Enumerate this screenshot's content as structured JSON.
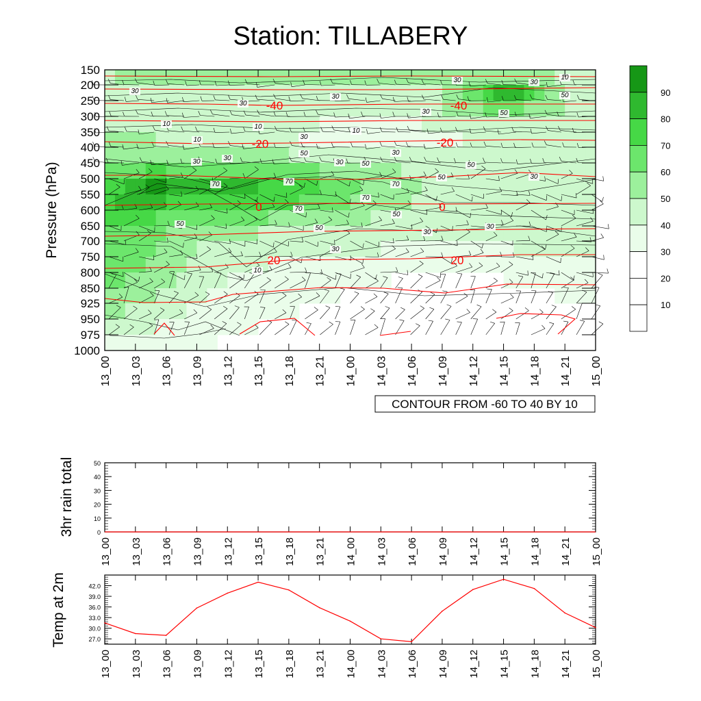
{
  "title": "Station: TILLABERY",
  "colors": {
    "shade_levels": [
      "#ffffff",
      "#ffffff",
      "#ffffff",
      "#eafdea",
      "#cdf8cd",
      "#9cf09c",
      "#6ce66c",
      "#46d846",
      "#2fb92f",
      "#169716"
    ],
    "contour_line": "#000000",
    "temp_line": "#ff0000",
    "box": "#000000"
  },
  "chart_data": [
    {
      "type": "heatmap",
      "name": "time-pressure section",
      "ylabel": "Pressure (hPa)",
      "xlabel": "",
      "x_ticks": [
        "13_00",
        "13_03",
        "13_06",
        "13_09",
        "13_12",
        "13_15",
        "13_18",
        "13_21",
        "14_00",
        "14_03",
        "14_06",
        "14_09",
        "14_12",
        "14_15",
        "14_18",
        "14_21",
        "15_00"
      ],
      "y_ticks": [
        "150",
        "200",
        "250",
        "300",
        "350",
        "400",
        "450",
        "500",
        "550",
        "600",
        "650",
        "700",
        "750",
        "800",
        "850",
        "925",
        "950",
        "975",
        "1000"
      ],
      "colorbar_levels": [
        "10",
        "20",
        "30",
        "40",
        "50",
        "60",
        "70",
        "80",
        "90"
      ],
      "contour_note": "CONTOUR FROM -60 TO 40 BY 10",
      "humidity_labels": [
        "30",
        "30",
        "30",
        "30",
        "30",
        "10",
        "30",
        "50",
        "50",
        "10",
        "10",
        "10",
        "10",
        "30",
        "30",
        "30",
        "50",
        "50",
        "30",
        "30",
        "70",
        "70",
        "70",
        "70",
        "50",
        "50",
        "50",
        "50",
        "70",
        "30",
        "30",
        "50",
        "30",
        "30",
        "10"
      ],
      "temperature_labels": [
        "-40",
        "-40",
        "-20",
        "-20",
        "0",
        "0",
        "20",
        "20"
      ],
      "temperature_isotherms": [
        {
          "label": "-40",
          "level": -40
        },
        {
          "label": "-20",
          "level": -20
        },
        {
          "label": "0",
          "level": 0
        },
        {
          "label": "20",
          "level": 20
        }
      ]
    },
    {
      "type": "line",
      "name": "3hr rain total",
      "ylabel": "3hr rain total",
      "x_ticks": [
        "13_00",
        "13_03",
        "13_06",
        "13_09",
        "13_12",
        "13_15",
        "13_18",
        "13_21",
        "14_00",
        "14_03",
        "14_06",
        "14_09",
        "14_12",
        "14_15",
        "14_18",
        "14_21",
        "15_00"
      ],
      "y_ticks": [
        "0",
        "10",
        "20",
        "30",
        "40",
        "50"
      ],
      "ylim": [
        0,
        50
      ],
      "values": [
        0,
        0,
        0,
        0,
        0,
        0,
        0,
        0,
        0,
        0,
        0,
        0,
        0,
        0,
        0,
        0,
        0
      ]
    },
    {
      "type": "line",
      "name": "Temp at 2m",
      "ylabel": "Temp at 2m",
      "x_ticks": [
        "13_00",
        "13_03",
        "13_06",
        "13_09",
        "13_12",
        "13_15",
        "13_18",
        "13_21",
        "14_00",
        "14_03",
        "14_06",
        "14_09",
        "14_12",
        "14_15",
        "14_18",
        "14_21",
        "15_00"
      ],
      "y_ticks": [
        "27.0",
        "30.0",
        "33.0",
        "36.0",
        "39.0",
        "42.0"
      ],
      "ylim": [
        25.5,
        45.0
      ],
      "values": [
        31.5,
        28.5,
        28.0,
        35.7,
        39.9,
        43.0,
        40.8,
        35.8,
        32.0,
        27.0,
        26.2,
        34.8,
        40.9,
        43.8,
        41.2,
        34.3,
        30.2
      ]
    }
  ]
}
